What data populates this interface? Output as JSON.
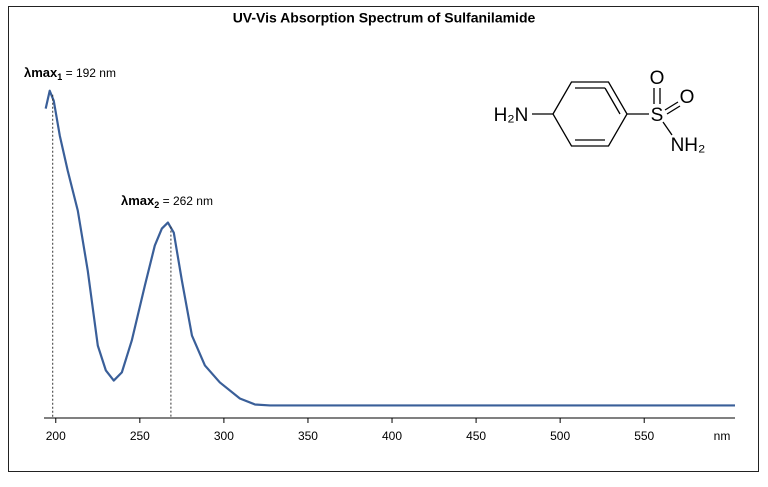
{
  "chart_data": {
    "type": "line",
    "title": "UV-Vis Absorption Spectrum of Sulfanilamide",
    "x_axis_label": "nm",
    "x": [
      194,
      196.4,
      198.8,
      202.4,
      207.1,
      213.1,
      219,
      225,
      229.8,
      234.5,
      239.3,
      245.2,
      253,
      258.9,
      263.1,
      266.7,
      270.2,
      275,
      281,
      288.7,
      297.6,
      309.5,
      318.5,
      327.4,
      604
    ],
    "series": [
      {
        "color": "#3a5f99",
        "values": [
          0.943,
          1.0,
          0.968,
          0.857,
          0.746,
          0.619,
          0.429,
          0.19,
          0.111,
          0.079,
          0.105,
          0.206,
          0.381,
          0.508,
          0.562,
          0.581,
          0.549,
          0.397,
          0.222,
          0.127,
          0.073,
          0.022,
          0.003,
          0,
          0
        ]
      }
    ],
    "xlim": [
      193,
      604
    ],
    "xticks": [
      200,
      250,
      300,
      350,
      400,
      450,
      500,
      550
    ],
    "ylim": [
      -0.04,
      1.05
    ],
    "annotations": [
      {
        "symbol": "λmax",
        "subscript": "1",
        "text": " = 192 nm"
      },
      {
        "symbol": "λmax",
        "subscript": "2",
        "text": " = 262 nm"
      }
    ],
    "structure": {
      "amine": "H₂N",
      "sulfur": "S",
      "oxygen_top": "O",
      "oxygen_right": "O",
      "amide": "NH₂"
    }
  }
}
